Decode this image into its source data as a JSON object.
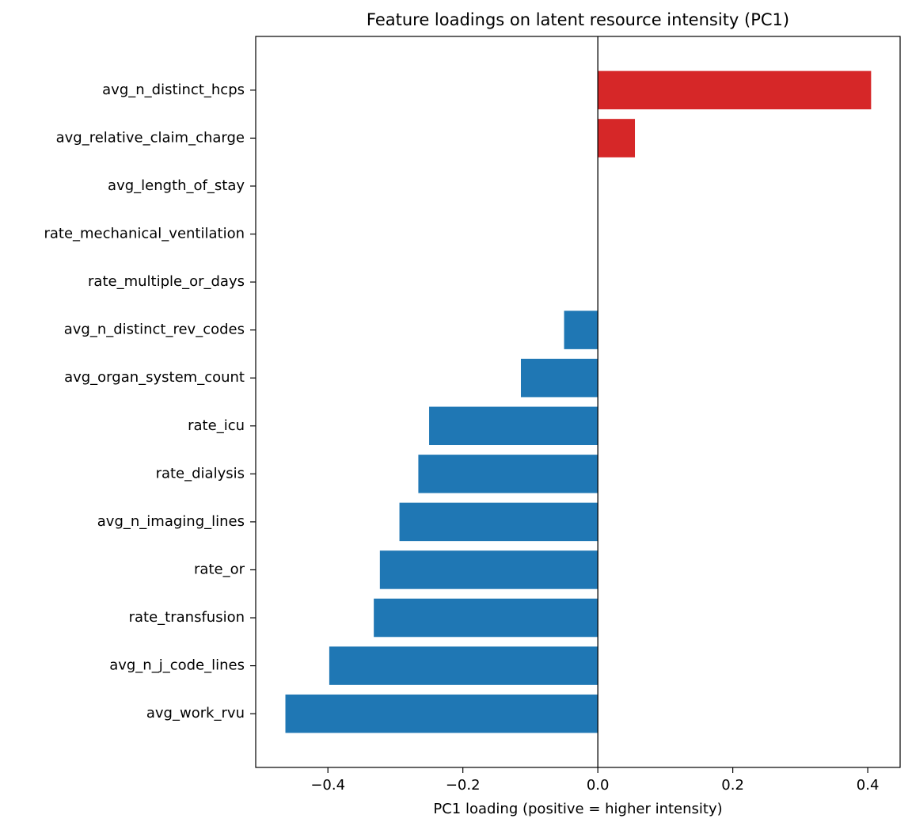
{
  "chart_data": {
    "type": "barh",
    "title": "Feature loadings on latent resource intensity (PC1)",
    "x_label": "PC1 loading (positive = higher intensity)",
    "categories": [
      "avg_n_distinct_hcps",
      "avg_relative_claim_charge",
      "avg_length_of_stay",
      "rate_mechanical_ventilation",
      "rate_multiple_or_days",
      "avg_n_distinct_rev_codes",
      "avg_organ_system_count",
      "rate_icu",
      "rate_dialysis",
      "avg_n_imaging_lines",
      "rate_or",
      "rate_transfusion",
      "avg_n_j_code_lines",
      "avg_work_rvu"
    ],
    "values": [
      0.405,
      0.055,
      0,
      0,
      0,
      -0.05,
      -0.114,
      -0.25,
      -0.266,
      -0.294,
      -0.323,
      -0.332,
      -0.398,
      -0.463
    ],
    "positive_color": "#d62728",
    "negative_color": "#1f77b4",
    "xlim": [
      -0.507,
      0.448
    ],
    "xticks": [
      {
        "value": -0.4,
        "label": "−0.4"
      },
      {
        "value": -0.2,
        "label": "−0.2"
      },
      {
        "value": 0,
        "label": "0.0"
      },
      0.2,
      0.4
    ],
    "zero_line": true,
    "grid": false
  }
}
